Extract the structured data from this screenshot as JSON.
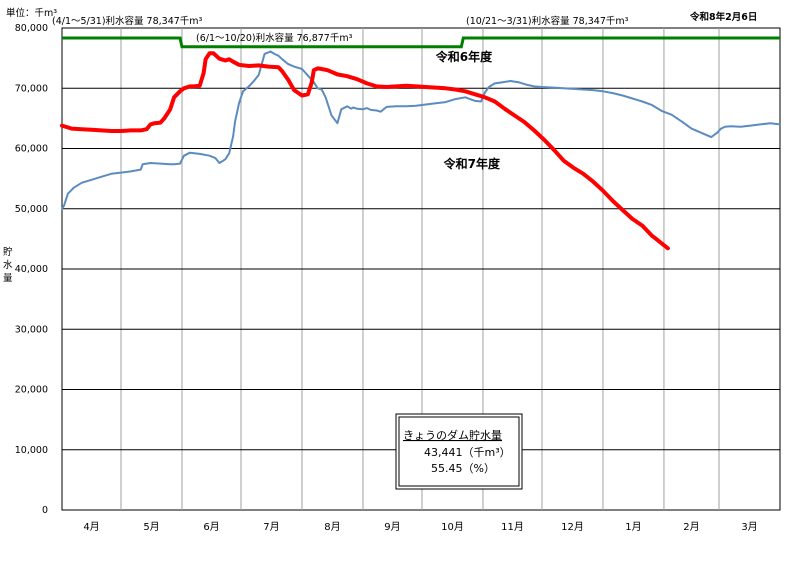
{
  "header": {
    "unit_label": "単位：千m³",
    "date": "令和8年2月6日",
    "ylabel_chars": [
      "貯",
      "水",
      "量"
    ]
  },
  "capacity_notes": [
    {
      "label": "(4/1～5/31)利水容量  78,347千m³"
    },
    {
      "label": "(6/1～10/20)利水容量  76,877千m³"
    },
    {
      "label": "(10/21～3/31)利水容量  78,347千m³"
    }
  ],
  "info_box": {
    "title": "きょうのダム貯水量",
    "volume": "43,441（千m³）",
    "percent": "55.45（%）"
  },
  "chart_data": {
    "type": "line",
    "ylim": [
      0,
      80000
    ],
    "yticks": [
      "0",
      "10,000",
      "20,000",
      "30,000",
      "40,000",
      "50,000",
      "60,000",
      "70,000",
      "80,000"
    ],
    "ytick_values": [
      0,
      10000,
      20000,
      30000,
      40000,
      50000,
      60000,
      70000,
      80000
    ],
    "x_unit": "day of fiscal year (Apr 1 = 0)",
    "xlim": [
      0,
      365
    ],
    "months": [
      "4月",
      "5月",
      "6月",
      "7月",
      "8月",
      "9月",
      "10月",
      "11月",
      "12月",
      "1月",
      "2月",
      "3月"
    ],
    "month_starts": [
      0,
      30,
      61,
      91,
      122,
      153,
      183,
      214,
      244,
      275,
      306,
      334
    ],
    "capacity": {
      "x": [
        0,
        60,
        61,
        203,
        204,
        365
      ],
      "values": [
        78347,
        78347,
        76877,
        76877,
        78347,
        78347
      ],
      "color": "#008000"
    },
    "series": [
      {
        "name": "令和6年度",
        "color": "#5b8bbf",
        "x": [
          0,
          1,
          3,
          6,
          10,
          15,
          20,
          25,
          30,
          35,
          40,
          41,
          45,
          50,
          55,
          57,
          60,
          62,
          65,
          70,
          75,
          78,
          80,
          83,
          85,
          87,
          88,
          90,
          92,
          95,
          97,
          100,
          103,
          106,
          108,
          110,
          112,
          115,
          118,
          122,
          125,
          128,
          130,
          132,
          134,
          137,
          140,
          142,
          145,
          147,
          148,
          150,
          153,
          155,
          157,
          160,
          162,
          165,
          170,
          175,
          180,
          185,
          190,
          195,
          200,
          205,
          210,
          213,
          215,
          217,
          220,
          224,
          228,
          232,
          236,
          240,
          244,
          250,
          255,
          260,
          265,
          270,
          275,
          280,
          285,
          290,
          295,
          300,
          305,
          310,
          315,
          320,
          325,
          330,
          333,
          335,
          337,
          340,
          345,
          350,
          355,
          360,
          365
        ],
        "values": [
          50000,
          50500,
          52500,
          53500,
          54300,
          54800,
          55300,
          55800,
          56000,
          56200,
          56500,
          57400,
          57600,
          57500,
          57400,
          57400,
          57500,
          58800,
          59300,
          59100,
          58800,
          58400,
          57600,
          58200,
          59200,
          62000,
          64500,
          67500,
          69500,
          70300,
          71000,
          72200,
          75700,
          76100,
          75700,
          75400,
          74800,
          74000,
          73600,
          73200,
          72100,
          71000,
          70000,
          69800,
          68500,
          65500,
          64200,
          66500,
          67000,
          66600,
          66800,
          66600,
          66500,
          66700,
          66400,
          66300,
          66100,
          66900,
          67000,
          67000,
          67100,
          67300,
          67500,
          67700,
          68200,
          68500,
          67900,
          67800,
          69300,
          70200,
          70800,
          71000,
          71200,
          71000,
          70600,
          70300,
          70200,
          70100,
          70000,
          69900,
          69800,
          69700,
          69500,
          69200,
          68800,
          68300,
          67800,
          67200,
          66200,
          65600,
          64500,
          63300,
          62600,
          61900,
          62600,
          63300,
          63600,
          63700,
          63600,
          63800,
          64000,
          64200,
          64000
        ],
        "label_at": [
          190,
          74500
        ]
      },
      {
        "name": "令和7年度",
        "color": "#ff0000",
        "x": [
          0,
          5,
          10,
          15,
          20,
          25,
          30,
          35,
          40,
          43,
          45,
          47,
          50,
          52,
          55,
          57,
          60,
          62,
          65,
          67,
          70,
          72,
          73,
          75,
          77,
          80,
          83,
          85,
          87,
          90,
          95,
          100,
          105,
          110,
          112,
          115,
          118,
          122,
          125,
          127,
          128,
          130,
          132,
          135,
          140,
          145,
          150,
          155,
          160,
          165,
          170,
          175,
          180,
          185,
          190,
          195,
          200,
          205,
          210,
          215,
          220,
          225,
          230,
          235,
          240,
          245,
          250,
          255,
          260,
          265,
          270,
          275,
          280,
          285,
          290,
          295,
          300,
          302,
          305,
          308
        ],
        "values": [
          63800,
          63300,
          63200,
          63100,
          63000,
          62900,
          62900,
          63000,
          63000,
          63200,
          64000,
          64200,
          64300,
          65000,
          66500,
          68500,
          69500,
          70000,
          70300,
          70300,
          70400,
          72500,
          74800,
          75800,
          75800,
          74900,
          74600,
          74800,
          74400,
          73900,
          73700,
          73800,
          73600,
          73500,
          72800,
          71400,
          69700,
          68800,
          69000,
          71000,
          73000,
          73300,
          73200,
          73000,
          72300,
          72000,
          71500,
          70800,
          70300,
          70200,
          70300,
          70400,
          70300,
          70200,
          70100,
          70000,
          69800,
          69500,
          69000,
          68500,
          67800,
          66600,
          65500,
          64400,
          63000,
          61500,
          59800,
          58000,
          56800,
          55800,
          54500,
          53000,
          51300,
          49800,
          48300,
          47200,
          45500,
          45000,
          44200,
          43441
        ],
        "label_at": [
          194,
          56800
        ]
      }
    ]
  }
}
